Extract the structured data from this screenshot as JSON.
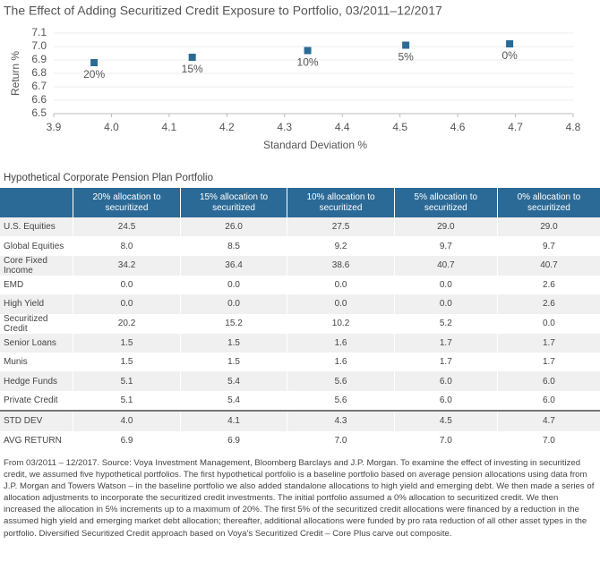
{
  "chart_data": {
    "type": "scatter",
    "title": "The Effect of Adding Securitized Credit Exposure to Portfolio, 03/2011–12/2017",
    "x_label": "Standard Deviation %",
    "y_label": "Return %",
    "labels": [
      "20%",
      "15%",
      "10%",
      "5%",
      "0%"
    ],
    "x": [
      3.97,
      4.14,
      4.34,
      4.51,
      4.69
    ],
    "values": [
      6.88,
      6.92,
      6.97,
      7.01,
      7.02
    ],
    "color": "#2a6b96",
    "xlim": [
      3.9,
      4.8
    ],
    "xticks": [
      3.9,
      {
        "value": 4,
        "label": "4.0"
      },
      4.1,
      4.2,
      4.3,
      4.4,
      4.5,
      4.6,
      4.7,
      4.8
    ],
    "ylim": [
      6.5,
      7.1
    ],
    "yticks": [
      6.5,
      6.6,
      6.7,
      6.8,
      6.9,
      {
        "value": 7,
        "label": "7.0"
      },
      7.1
    ],
    "grid": true
  },
  "table": {
    "title": "Hypothetical Corporate Pension Plan Portfolio",
    "header": [
      "20% allocation to securitized",
      "15% allocation to securitized",
      "10% allocation to securitized",
      "5% allocation to securitized",
      "0% allocation to securitized"
    ],
    "rows": [
      [
        "U.S. Equities",
        "24.5",
        "26.0",
        "27.5",
        "29.0",
        "29.0"
      ],
      [
        "Global Equities",
        "8.0",
        "8.5",
        "9.2",
        "9.7",
        "9.7"
      ],
      [
        "Core Fixed Income",
        "34.2",
        "36.4",
        "38.6",
        "40.7",
        "40.7"
      ],
      [
        "EMD",
        "0.0",
        "0.0",
        "0.0",
        "0.0",
        "2.6"
      ],
      [
        "High Yield",
        "0.0",
        "0.0",
        "0.0",
        "0.0",
        "2.6"
      ],
      [
        "Securitized Credit",
        "20.2",
        "15.2",
        "10.2",
        "5.2",
        "0.0"
      ],
      [
        "Senior Loans",
        "1.5",
        "1.5",
        "1.6",
        "1.7",
        "1.7"
      ],
      [
        "Munis",
        "1.5",
        "1.5",
        "1.6",
        "1.7",
        "1.7"
      ],
      [
        "Hedge Funds",
        "5.1",
        "5.4",
        "5.6",
        "6.0",
        "6.0"
      ],
      [
        "Private Credit",
        "5.1",
        "5.4",
        "5.6",
        "6.0",
        "6.0"
      ]
    ],
    "summary_rows": [
      [
        "STD DEV",
        "4.0",
        "4.1",
        "4.3",
        "4.5",
        "4.7"
      ],
      [
        "AVG RETURN",
        "6.9",
        "6.9",
        "7.0",
        "7.0",
        "7.0"
      ]
    ]
  },
  "footnote": "From 03/2011 – 12/2017. Source: Voya Investment Management, Bloomberg Barclays and J.P. Morgan. To examine the effect of investing in securitized credit, we assumed five hypothetical portfolios. The first hypothetical portfolio is a baseline portfolio based on average pension allocations using data from J.P. Morgan and Towers Watson – in the baseline portfolio we also added standalone allocations to high yield and emerging debt. We then made a series of allocation adjustments to incorporate the securitized credit investments. The initial portfolio assumed a 0% allocation to securitized credit. We then increased the allocation in 5% increments up to a maximum of 20%. The first 5% of the securitized credit allocations were financed by a reduction in the assumed high yield and emerging market debt allocation; thereafter, additional allocations were funded by pro rata reduction of all other asset types in the portfolio. Diversified Securitized Credit approach based on Voya’s Securitized Credit – Core Plus carve out composite."
}
